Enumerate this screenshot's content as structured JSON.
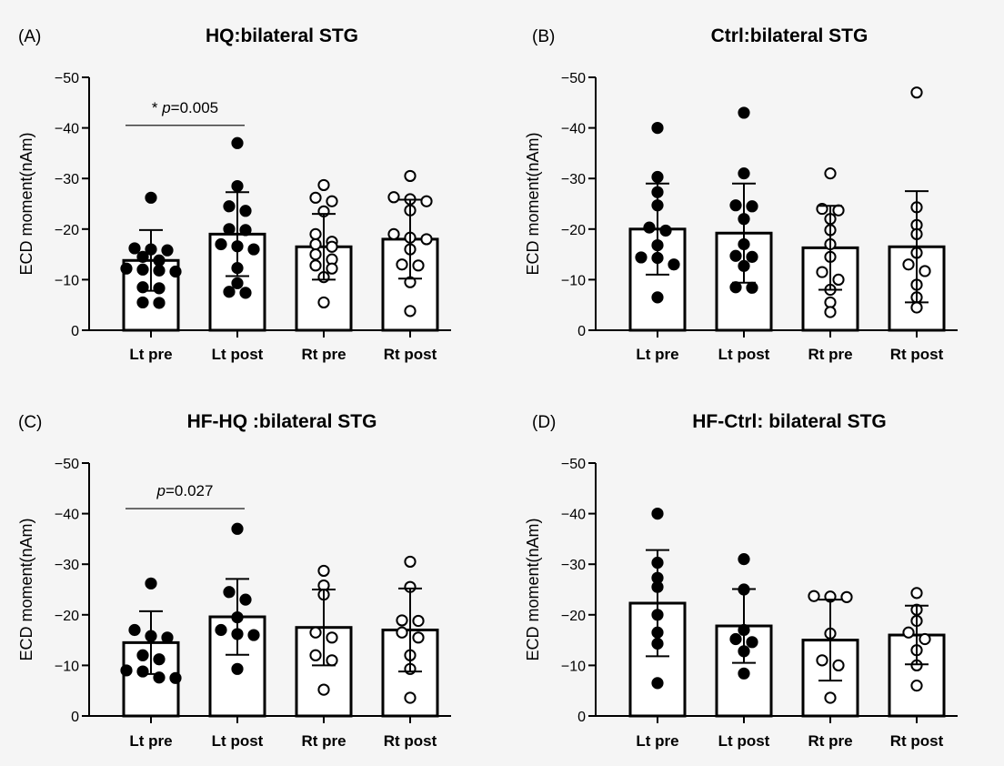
{
  "panels": [
    {
      "label": "(A)",
      "title": "HQ:bilateral STG",
      "ylabel": "ECD moment(nAm)",
      "ylim": [
        0,
        -50
      ],
      "yticks": [
        "0",
        "−10",
        "−20",
        "−30",
        "−40",
        "−50"
      ],
      "categories": [
        "Lt pre",
        "Lt post",
        "Rt pre",
        "Rt post"
      ],
      "annotation": {
        "text": "* p=0.005",
        "from": 0,
        "to": 1,
        "y": -40.5
      },
      "groups": [
        {
          "category": "Lt pre",
          "fill": "filled",
          "mean": -13.8,
          "sd": 6.0,
          "points": [
            -26.2,
            -16.2,
            -16.0,
            -15.8,
            -14.5,
            -13.8,
            -12.2,
            -12.0,
            -11.8,
            -11.6,
            -8.5,
            -8.3,
            -5.5,
            -5.4
          ]
        },
        {
          "category": "Lt post",
          "fill": "filled",
          "mean": -19.0,
          "sd": 8.3,
          "points": [
            -37.0,
            -28.5,
            -24.5,
            -23.6,
            -20.0,
            -19.8,
            -17.0,
            -16.6,
            -16.0,
            -12.3,
            -9.3,
            -7.6,
            -7.4
          ]
        },
        {
          "category": "Rt pre",
          "fill": "open",
          "mean": -16.5,
          "sd": 6.5,
          "points": [
            -28.7,
            -26.2,
            -25.5,
            -23.5,
            -19.0,
            -17.5,
            -17.0,
            -16.5,
            -15.0,
            -14.0,
            -12.8,
            -12.2,
            -10.5,
            -5.5
          ]
        },
        {
          "category": "Rt post",
          "fill": "open",
          "mean": -18.0,
          "sd": 7.8,
          "points": [
            -30.5,
            -26.3,
            -25.9,
            -25.5,
            -23.7,
            -19.0,
            -18.3,
            -18.0,
            -16.0,
            -13.0,
            -12.8,
            -9.5,
            -3.8
          ]
        }
      ]
    },
    {
      "label": "(B)",
      "title": "Ctrl:bilateral STG",
      "ylabel": "ECD moment(nAm)",
      "ylim": [
        0,
        -50
      ],
      "yticks": [
        "0",
        "−10",
        "−20",
        "−30",
        "−40",
        "−50"
      ],
      "categories": [
        "Lt pre",
        "Lt post",
        "Rt pre",
        "Rt post"
      ],
      "annotation": null,
      "groups": [
        {
          "category": "Lt pre",
          "fill": "filled",
          "mean": -20.0,
          "sd": 9.0,
          "points": [
            -40.0,
            -30.3,
            -27.3,
            -24.7,
            -20.3,
            -19.7,
            -16.8,
            -14.4,
            -14.3,
            -13.0,
            -6.5
          ]
        },
        {
          "category": "Lt post",
          "fill": "filled",
          "mean": -19.2,
          "sd": 9.8,
          "points": [
            -43.0,
            -31.0,
            -24.7,
            -24.5,
            -22.0,
            -17.0,
            -14.7,
            -14.5,
            -12.7,
            -8.5,
            -8.4
          ]
        },
        {
          "category": "Rt pre",
          "fill": "open",
          "mean": -16.3,
          "sd": 8.3,
          "points": [
            -31.0,
            -24.0,
            -23.7,
            -22.0,
            -19.8,
            -17.0,
            -14.5,
            -11.5,
            -10.0,
            -8.0,
            -5.5,
            -3.6
          ]
        },
        {
          "category": "Rt post",
          "fill": "open",
          "mean": -16.5,
          "sd": 11.0,
          "points": [
            -47.0,
            -24.3,
            -20.8,
            -19.0,
            -15.3,
            -13.0,
            -11.7,
            -9.0,
            -6.5,
            -4.5
          ]
        }
      ]
    },
    {
      "label": "(C)",
      "title": "HF-HQ :bilateral STG",
      "ylabel": "ECD moment(nAm)",
      "ylim": [
        0,
        -50
      ],
      "yticks": [
        "0",
        "−10",
        "−20",
        "−30",
        "−40",
        "−50"
      ],
      "categories": [
        "Lt pre",
        "Lt post",
        "Rt pre",
        "Rt post"
      ],
      "annotation": {
        "text": "p=0.027",
        "from": 0,
        "to": 1,
        "y": -41
      },
      "groups": [
        {
          "category": "Lt pre",
          "fill": "filled",
          "mean": -14.5,
          "sd": 6.2,
          "points": [
            -26.2,
            -17.0,
            -15.8,
            -15.5,
            -12.0,
            -11.2,
            -9.0,
            -8.8,
            -7.6,
            -7.5
          ]
        },
        {
          "category": "Lt post",
          "fill": "filled",
          "mean": -19.6,
          "sd": 7.5,
          "points": [
            -37.0,
            -24.5,
            -23.0,
            -19.5,
            -17.0,
            -16.2,
            -16.0,
            -9.3
          ]
        },
        {
          "category": "Rt pre",
          "fill": "open",
          "mean": -17.5,
          "sd": 7.5,
          "points": [
            -28.7,
            -25.8,
            -24.0,
            -16.5,
            -15.5,
            -12.0,
            -11.0,
            -5.2
          ]
        },
        {
          "category": "Rt post",
          "fill": "open",
          "mean": -17.0,
          "sd": 8.2,
          "points": [
            -30.5,
            -25.5,
            -18.9,
            -18.8,
            -16.5,
            -15.5,
            -12.0,
            -9.3,
            -3.6
          ]
        }
      ]
    },
    {
      "label": "(D)",
      "title": "HF-Ctrl: bilateral STG",
      "ylabel": "ECD moment(nAm)",
      "ylim": [
        0,
        -50
      ],
      "yticks": [
        "0",
        "−10",
        "−20",
        "−30",
        "−40",
        "−50"
      ],
      "categories": [
        "Lt pre",
        "Lt post",
        "Rt pre",
        "Rt post"
      ],
      "annotation": null,
      "groups": [
        {
          "category": "Lt pre",
          "fill": "filled",
          "mean": -22.3,
          "sd": 10.5,
          "points": [
            -40.0,
            -30.3,
            -27.3,
            -25.5,
            -20.0,
            -16.5,
            -14.3,
            -6.5
          ]
        },
        {
          "category": "Lt post",
          "fill": "filled",
          "mean": -17.8,
          "sd": 7.3,
          "points": [
            -31.0,
            -25.0,
            -17.0,
            -15.2,
            -14.6,
            -12.8,
            -8.4
          ]
        },
        {
          "category": "Rt pre",
          "fill": "open",
          "mean": -15.0,
          "sd": 8.0,
          "points": [
            -23.7,
            -23.6,
            -23.5,
            -16.3,
            -11.0,
            -10.0,
            -3.6
          ]
        },
        {
          "category": "Rt post",
          "fill": "open",
          "mean": -16.0,
          "sd": 5.8,
          "points": [
            -24.3,
            -21.0,
            -18.8,
            -16.5,
            -15.2,
            -13.0,
            -10.0,
            -6.0
          ]
        }
      ]
    }
  ]
}
